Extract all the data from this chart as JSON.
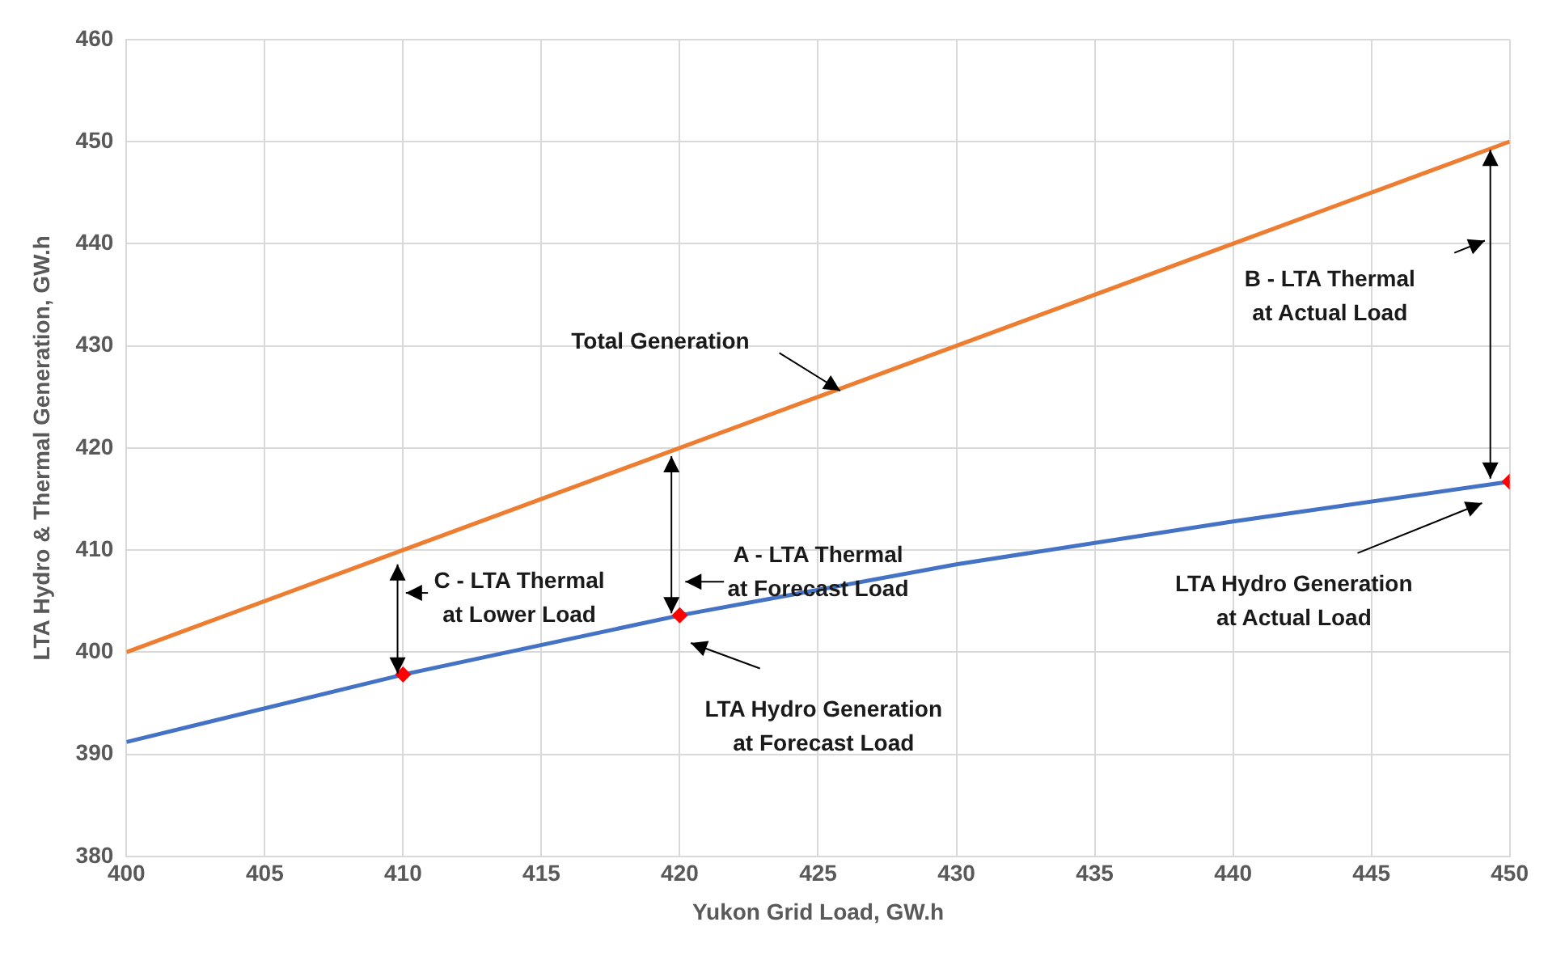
{
  "chart_data": {
    "type": "line",
    "xlabel": "Yukon Grid Load, GW.h",
    "ylabel": "LTA Hydro & Thermal Generation, GW.h",
    "xlim": [
      400,
      450
    ],
    "xticks": [
      400,
      405,
      410,
      415,
      420,
      425,
      430,
      435,
      440,
      445,
      450
    ],
    "ylim": [
      380,
      460
    ],
    "yticks": [
      380,
      390,
      400,
      410,
      420,
      430,
      440,
      450,
      460
    ],
    "grid": true,
    "series": [
      {
        "color": "#ed7d31",
        "marker": "none",
        "x": [
          400,
          450
        ],
        "values": [
          400,
          450
        ]
      },
      {
        "color": "#4472c4",
        "marker": "none",
        "x": [
          400,
          410,
          420,
          430,
          440,
          450
        ],
        "values": [
          391.2,
          397.8,
          403.6,
          408.6,
          412.8,
          416.7
        ]
      },
      {
        "type": "scatter",
        "color": "#ff0000",
        "marker": "diamond",
        "x": [
          410,
          420,
          450
        ],
        "values": [
          397.8,
          403.6,
          416.7
        ]
      }
    ],
    "annotations": [
      "Total Generation",
      "A - LTA Thermal\nat Forecast Load",
      "C - LTA Thermal\nat Lower Load",
      "LTA Hydro Generation\nat Forecast Load",
      "B - LTA Thermal\nat Actual Load",
      "LTA Hydro Generation\nat Actual Load"
    ]
  }
}
